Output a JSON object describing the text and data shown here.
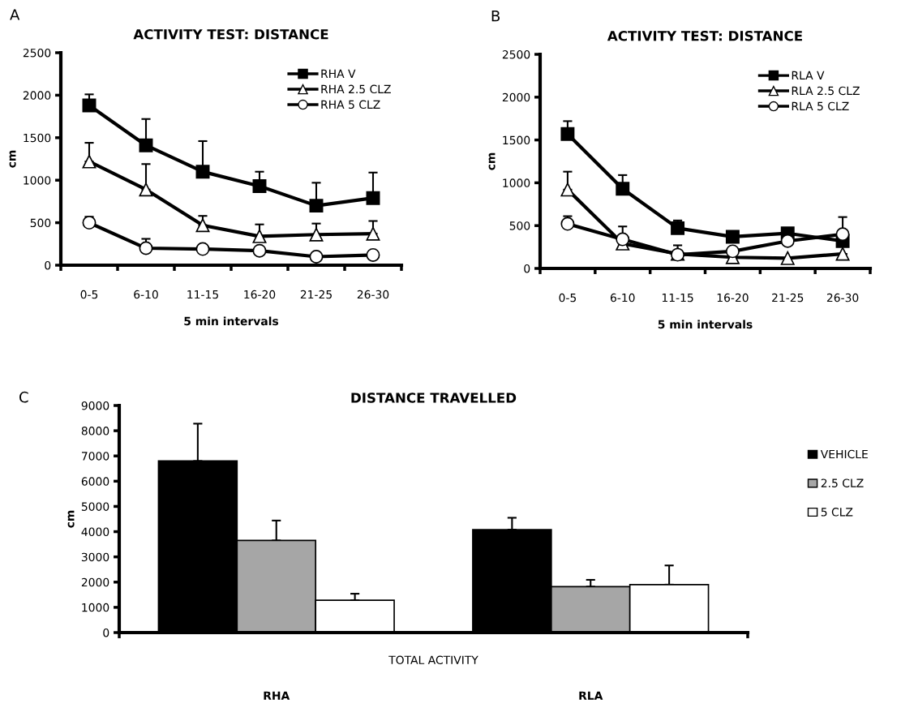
{
  "chart_data": [
    {
      "type": "line",
      "title": "ACTIVITY TEST: DISTANCE",
      "xlabel": "5 min intervals",
      "ylabel": "cm",
      "annotations": [
        "A"
      ],
      "categories": [
        "0-5",
        "6-10",
        "11-15",
        "16-20",
        "21-25",
        "26-30"
      ],
      "ylim": [
        0,
        2500
      ],
      "yticks": [
        0,
        500,
        1000,
        1500,
        2000,
        2500
      ],
      "grid": false,
      "legend": "top right",
      "series": [
        {
          "name": "RHA V",
          "color": "#000000",
          "marker": "square",
          "values": [
            1880,
            1410,
            1100,
            930,
            700,
            790
          ],
          "errors": [
            [
              1880,
              2010
            ],
            [
              1410,
              1720
            ],
            [
              1100,
              1460
            ],
            [
              930,
              1100
            ],
            [
              700,
              970
            ],
            [
              790,
              1090
            ]
          ]
        },
        {
          "name": "RHA 2.5 CLZ",
          "color": "#000000",
          "marker": "triangle",
          "values": [
            1220,
            890,
            470,
            340,
            360,
            370
          ],
          "errors": [
            [
              1220,
              1440
            ],
            [
              890,
              1190
            ],
            [
              470,
              580
            ],
            [
              340,
              480
            ],
            [
              360,
              490
            ],
            [
              370,
              520
            ]
          ]
        },
        {
          "name": "RHA 5 CLZ",
          "color": "#000000",
          "marker": "circle",
          "values": [
            500,
            200,
            190,
            170,
            100,
            120
          ],
          "errors": [
            [
              500,
              570
            ],
            [
              200,
              310
            ],
            null,
            null,
            null,
            null
          ]
        }
      ]
    },
    {
      "type": "line",
      "title": "ACTIVITY TEST: DISTANCE",
      "xlabel": "5 min intervals",
      "ylabel": "cm",
      "annotations": [
        "B"
      ],
      "categories": [
        "0-5",
        "6-10",
        "11-15",
        "16-20",
        "21-25",
        "26-30"
      ],
      "ylim": [
        0,
        2500
      ],
      "yticks": [
        0,
        500,
        1000,
        1500,
        2000,
        2500
      ],
      "grid": false,
      "legend": "top right",
      "series": [
        {
          "name": "RLA V",
          "color": "#000000",
          "marker": "square",
          "values": [
            1570,
            930,
            470,
            370,
            410,
            320
          ],
          "errors": [
            [
              1570,
              1720
            ],
            [
              930,
              1090
            ],
            [
              470,
              560
            ],
            null,
            null,
            null
          ]
        },
        {
          "name": "RLA 2.5 CLZ",
          "color": "#000000",
          "marker": "triangle",
          "values": [
            920,
            290,
            170,
            130,
            120,
            170
          ],
          "errors": [
            [
              920,
              1130
            ],
            [
              290,
              490
            ],
            [
              170,
              270
            ],
            null,
            null,
            null
          ]
        },
        {
          "name": "RLA 5 CLZ",
          "color": "#000000",
          "marker": "circle",
          "values": [
            520,
            340,
            160,
            200,
            320,
            400
          ],
          "errors": [
            [
              520,
              610
            ],
            null,
            null,
            null,
            null,
            [
              400,
              600
            ]
          ]
        }
      ]
    },
    {
      "type": "bar",
      "title": "DISTANCE TRAVELLED",
      "xlabel": "TOTAL ACTIVITY",
      "ylabel": "cm",
      "annotations": [
        "C"
      ],
      "categories": [
        "RHA",
        "RLA"
      ],
      "ylim": [
        0,
        9000
      ],
      "yticks": [
        0,
        1000,
        2000,
        3000,
        4000,
        5000,
        6000,
        7000,
        8000,
        9000
      ],
      "grid": false,
      "legend": "right",
      "series": [
        {
          "name": "VEHICLE",
          "color": "#000000",
          "values": [
            6800,
            4080
          ],
          "errors": [
            [
              6800,
              8280
            ],
            [
              4080,
              4550
            ]
          ]
        },
        {
          "name": "2.5 CLZ",
          "color": "#a6a6a6",
          "values": [
            3650,
            1820
          ],
          "errors": [
            [
              3650,
              4440
            ],
            [
              1820,
              2090
            ]
          ]
        },
        {
          "name": "5 CLZ",
          "color": "#ffffff",
          "values": [
            1280,
            1900
          ],
          "errors": [
            [
              1280,
              1540
            ],
            [
              1900,
              2660
            ]
          ]
        }
      ]
    }
  ]
}
